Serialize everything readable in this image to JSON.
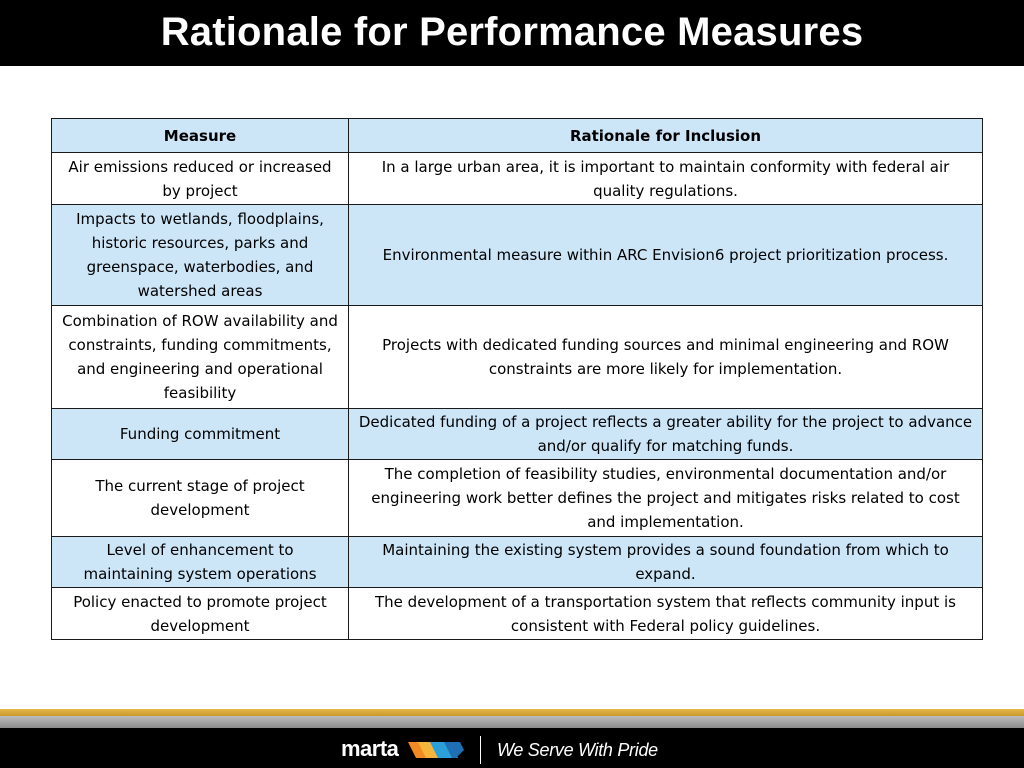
{
  "slide": {
    "title": "Rationale for Performance Measures"
  },
  "table": {
    "headers": [
      "Measure",
      "Rationale for Inclusion"
    ],
    "rows": [
      {
        "measure": "Air emissions reduced or increased by project",
        "rationale": "In a large urban area, it is important to maintain conformity with federal air quality regulations."
      },
      {
        "measure": "Impacts to wetlands, floodplains, historic resources, parks and greenspace, waterbodies, and watershed areas",
        "rationale": "Environmental measure within ARC Envision6 project prioritization process."
      },
      {
        "measure": "Combination of ROW availability and constraints, funding commitments, and engineering and operational feasibility",
        "rationale": "Projects with dedicated funding sources and minimal engineering and ROW constraints are more likely for implementation."
      },
      {
        "measure": "Funding commitment",
        "rationale": "Dedicated funding of a project reflects a greater ability for the project to advance and/or qualify for matching funds."
      },
      {
        "measure": "The current stage of project development",
        "rationale": "The completion of feasibility studies, environmental documentation and/or engineering work better defines the project and mitigates risks related to cost and implementation."
      },
      {
        "measure": "Level of enhancement to maintaining system operations",
        "rationale": "Maintaining the existing system provides a sound foundation from which to expand."
      },
      {
        "measure": "Policy enacted to promote project development",
        "rationale": "The development of a transportation system that reflects community input is consistent with Federal policy guidelines."
      }
    ]
  },
  "footer": {
    "logo_text": "marta",
    "tagline": "We Serve With Pride"
  },
  "colors": {
    "header_bg": "#000000",
    "row_shade": "#cce6f8",
    "accent_gold": "#d4a83a",
    "logo_orange": "#f08a24",
    "logo_blue": "#2a9fd8"
  }
}
